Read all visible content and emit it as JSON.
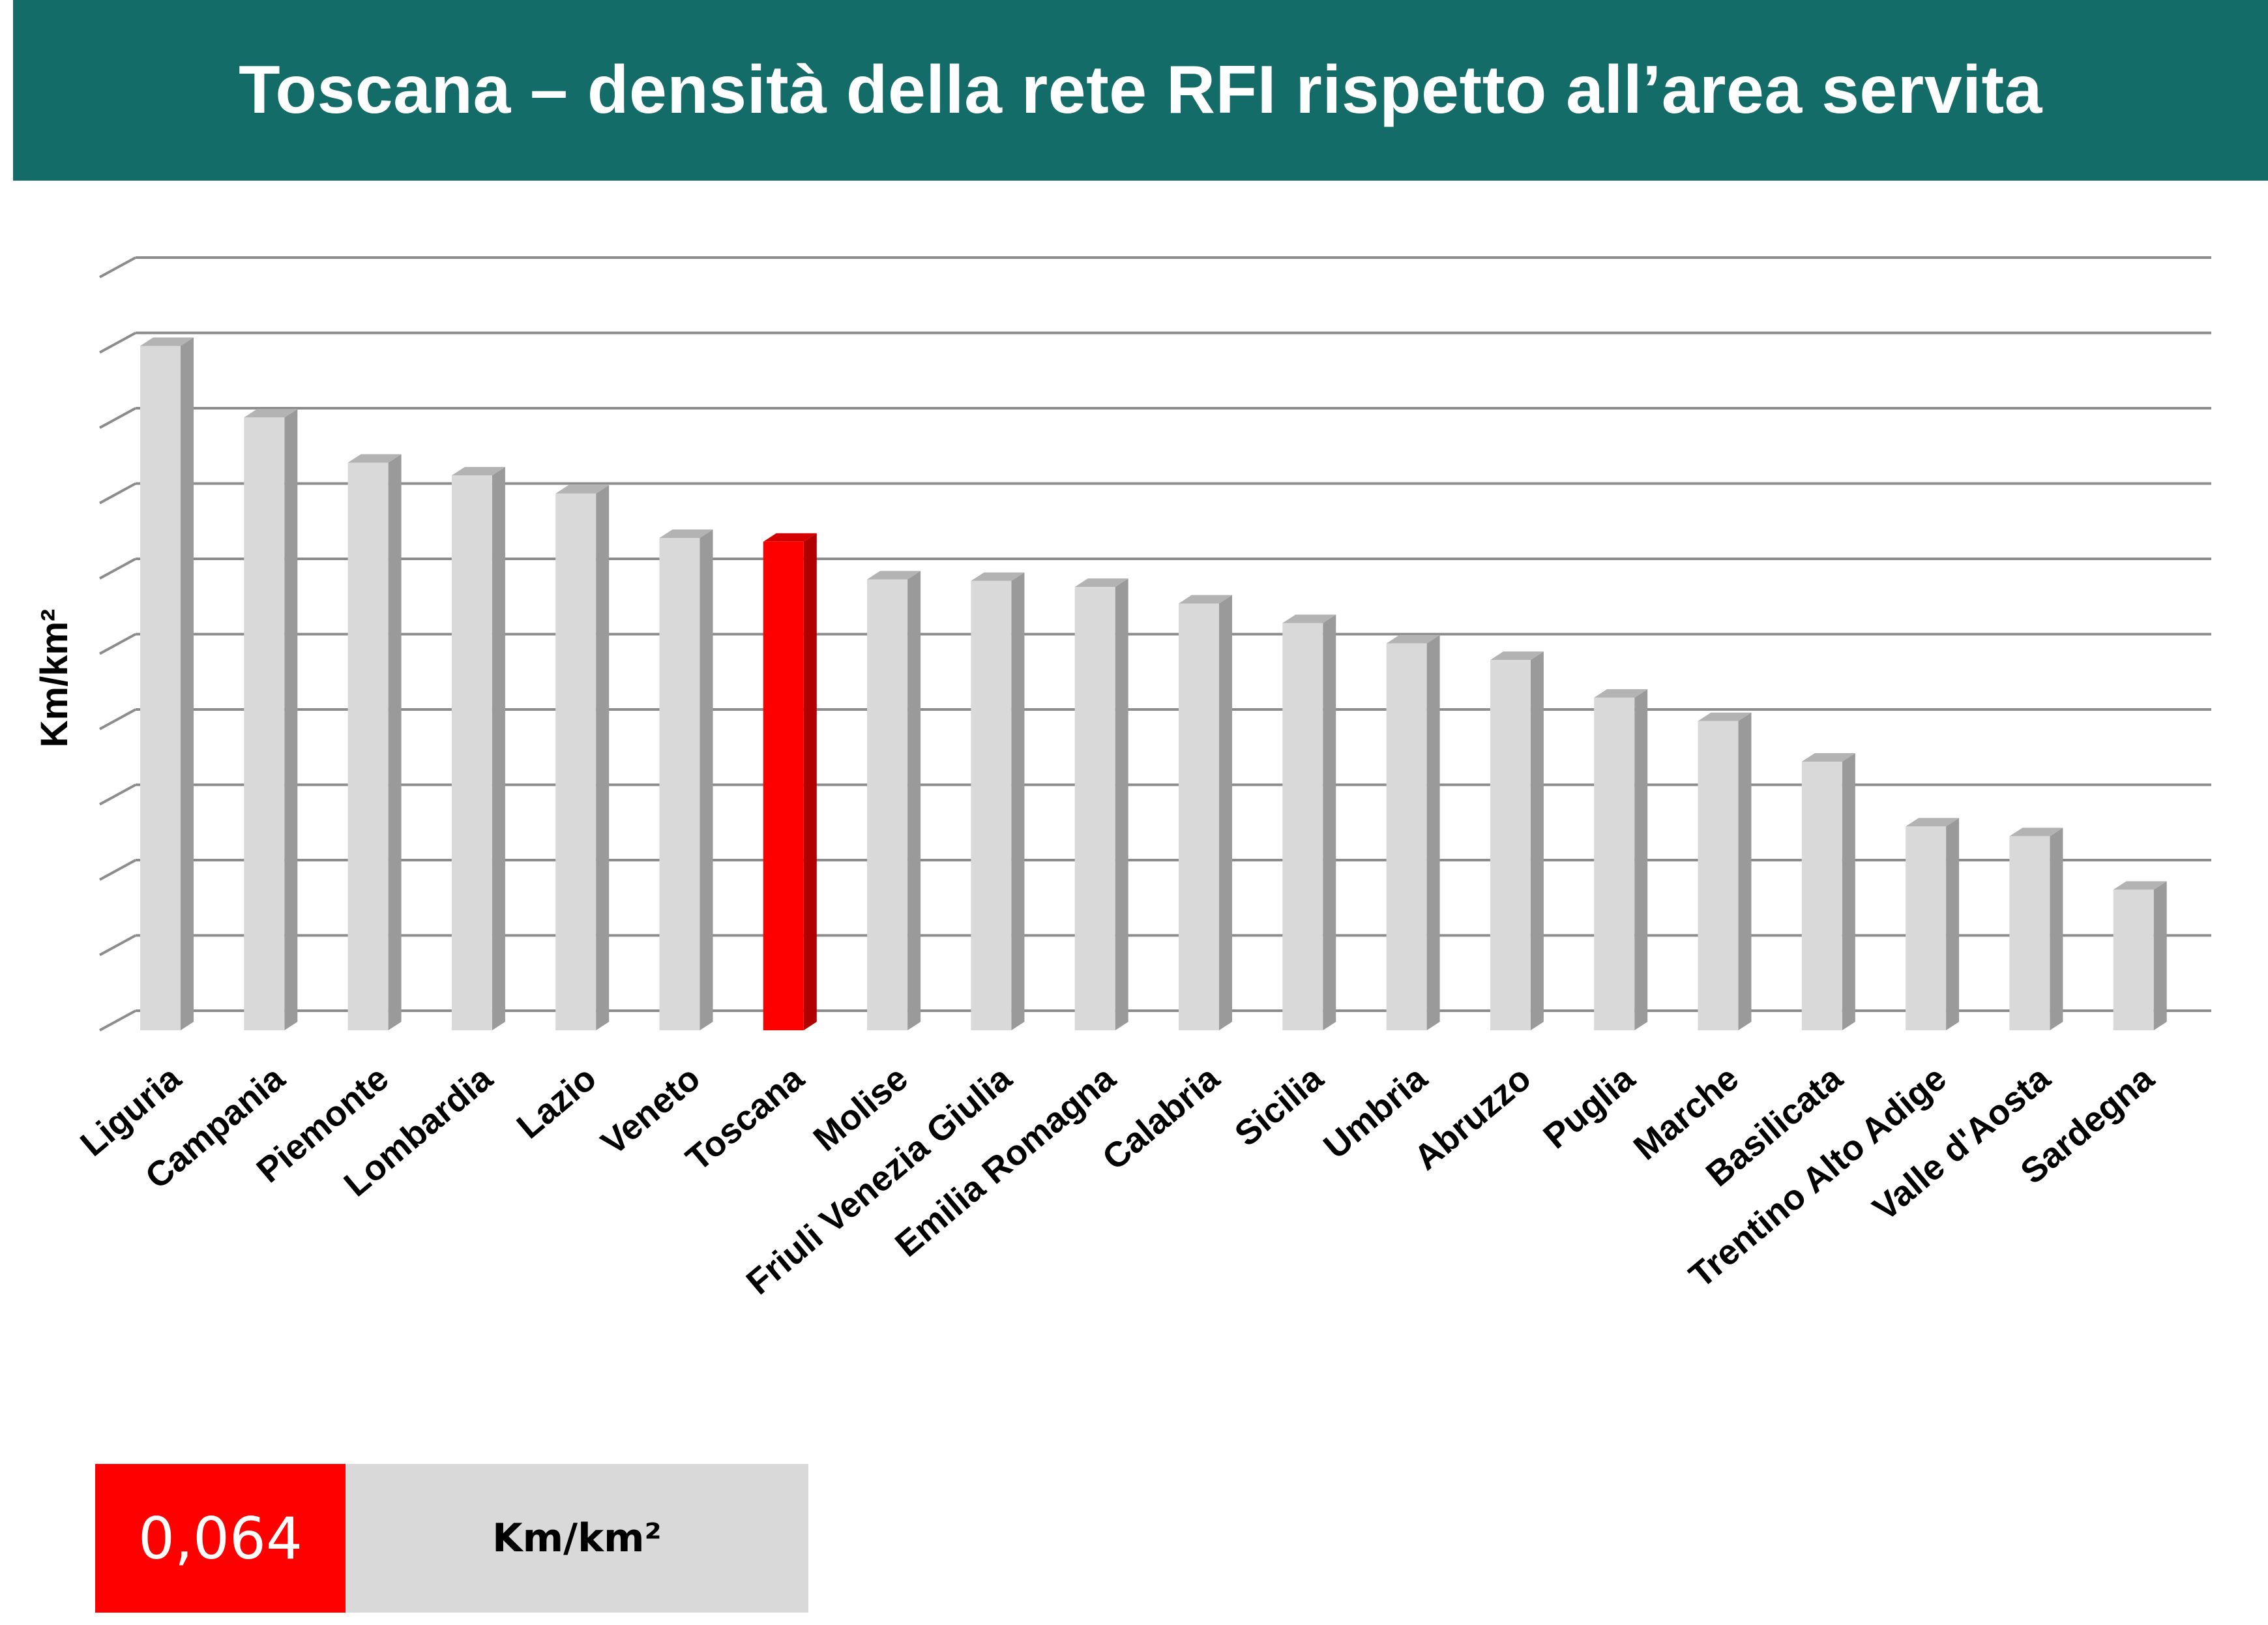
{
  "header": {
    "title": "Toscana – densità della rete RFI rispetto all’area servita"
  },
  "chart_data": {
    "type": "bar",
    "title": "Toscana – densità della rete RFI rispetto all’area servita",
    "xlabel": "",
    "ylabel": "Km/km²",
    "ylim": [
      0,
      0.1
    ],
    "grid": true,
    "tick_labels_visible": false,
    "highlight": "Toscana",
    "categories": [
      "Liguria",
      "Campania",
      "Piemonte",
      "Lombardia",
      "Lazio",
      "Veneto",
      "Toscana",
      "Molise",
      "Friuli Venezia Giulia",
      "Emilia Romagna",
      "Calabria",
      "Sicilia",
      "Umbria",
      "Abruzzo",
      "Puglia",
      "Marche",
      "Basilicata",
      "Trentino Alto Adige",
      "Valle d'Aosta",
      "Sardegna"
    ],
    "series": [
      {
        "values": [
          0.09,
          0.0805,
          0.0745,
          0.0728,
          0.0704,
          0.0645,
          0.064,
          0.059,
          0.0588,
          0.058,
          0.0558,
          0.0532,
          0.0505,
          0.0483,
          0.0433,
          0.0402,
          0.0348,
          0.0262,
          0.0249,
          0.0178
        ]
      }
    ],
    "colors": {
      "bar": "#d9d9d9",
      "bar_side": "#9a9a9a",
      "highlight": "#ff0000",
      "highlight_side": "#b00000",
      "grid": "#8c8c8c"
    }
  },
  "summary_box": {
    "value": "0,064",
    "unit": "Km/km²"
  }
}
